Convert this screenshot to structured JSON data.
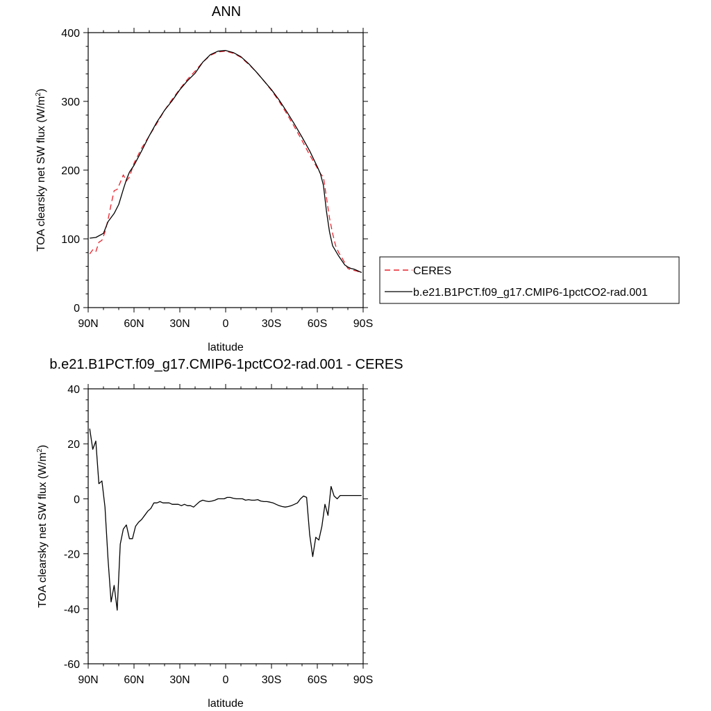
{
  "chart_data": [
    {
      "type": "line",
      "title": "ANN",
      "xlabel": "latitude",
      "ylabel": "TOA clearsky net SW flux (W/m",
      "ylabel_sup": "2",
      "ylabel_end": ")",
      "xlim": [
        90,
        -90
      ],
      "ylim": [
        0,
        400
      ],
      "x_ticks": [
        90,
        60,
        30,
        0,
        -30,
        -60,
        -90
      ],
      "x_tick_labels": [
        "90N",
        "60N",
        "30N",
        "0",
        "30S",
        "60S",
        "90S"
      ],
      "y_ticks": [
        0,
        100,
        200,
        300,
        400
      ],
      "y_tick_labels": [
        "0",
        "100",
        "200",
        "300",
        "400"
      ],
      "legend": {
        "placement": "right",
        "entries": [
          "CERES",
          "b.e21.B1PCT.f09_g17.CMIP6-1pctCO2-rad.001"
        ]
      },
      "series": [
        {
          "name": "CERES",
          "color": "#e8222c",
          "dash": true,
          "x": [
            89,
            87,
            85,
            83,
            81,
            79,
            77,
            75,
            73,
            71,
            69,
            67,
            65,
            63,
            60,
            55,
            50,
            45,
            40,
            35,
            30,
            25,
            20,
            15,
            10,
            5,
            0,
            -5,
            -10,
            -15,
            -20,
            -25,
            -30,
            -35,
            -40,
            -45,
            -50,
            -55,
            -60,
            -62,
            -64,
            -66,
            -68,
            -70,
            -72,
            -74,
            -76,
            -78,
            -80,
            -82,
            -84,
            -86,
            -88,
            -89
          ],
          "y": [
            78,
            84,
            81,
            95,
            98,
            110,
            128,
            150,
            170,
            172,
            182,
            193,
            184,
            190,
            210,
            232,
            250,
            268,
            287,
            303,
            318,
            332,
            344,
            357,
            367,
            372,
            373,
            370,
            364,
            354,
            343,
            330,
            316,
            300,
            282,
            263,
            243,
            222,
            203,
            195,
            190,
            160,
            130,
            108,
            90,
            80,
            73,
            65,
            57,
            55,
            54,
            53,
            51,
            50
          ]
        },
        {
          "name": "b.e21.B1PCT.f09_g17.CMIP6-1pctCO2-rad.001",
          "color": "#000000",
          "dash": false,
          "x": [
            89,
            85,
            80,
            77,
            73,
            70,
            67,
            65,
            63,
            60,
            55,
            50,
            45,
            40,
            35,
            30,
            25,
            20,
            15,
            10,
            5,
            0,
            -5,
            -10,
            -15,
            -20,
            -25,
            -30,
            -35,
            -40,
            -45,
            -50,
            -55,
            -60,
            -62,
            -64,
            -66,
            -68,
            -70,
            -74,
            -78,
            -80,
            -82,
            -84,
            -86,
            -88,
            -89
          ],
          "y": [
            101,
            102,
            108,
            125,
            137,
            150,
            172,
            186,
            197,
            207,
            228,
            250,
            270,
            287,
            301,
            317,
            330,
            341,
            357,
            368,
            373,
            374,
            371,
            365,
            355,
            343,
            330,
            317,
            302,
            285,
            267,
            248,
            228,
            205,
            195,
            178,
            140,
            110,
            90,
            75,
            62,
            59,
            57,
            56,
            54,
            52,
            51
          ]
        }
      ]
    },
    {
      "type": "line",
      "title": "b.e21.B1PCT.f09_g17.CMIP6-1pctCO2-rad.001 - CERES",
      "xlabel": "latitude",
      "ylabel": "TOA clearsky net SW flux (W/m",
      "ylabel_sup": "2",
      "ylabel_end": ")",
      "xlim": [
        90,
        -90
      ],
      "ylim": [
        -60,
        40
      ],
      "x_ticks": [
        90,
        60,
        30,
        0,
        -30,
        -60,
        -90
      ],
      "x_tick_labels": [
        "90N",
        "60N",
        "30N",
        "0",
        "30S",
        "60S",
        "90S"
      ],
      "y_ticks": [
        -60,
        -40,
        -20,
        0,
        20,
        40
      ],
      "y_tick_labels": [
        "-60",
        "-40",
        "-20",
        "0",
        "20",
        "40"
      ],
      "series": [
        {
          "color": "#000000",
          "x": [
            89,
            87,
            85,
            83,
            81,
            79,
            77,
            75,
            73,
            71,
            69,
            67,
            65,
            63,
            61,
            59,
            57,
            55,
            53,
            51,
            49,
            47,
            45,
            43,
            41,
            39,
            37,
            35,
            33,
            31,
            29,
            27,
            25,
            23,
            21,
            19,
            17,
            15,
            13,
            11,
            9,
            7,
            5,
            3,
            1,
            -1,
            -3,
            -5,
            -7,
            -9,
            -11,
            -13,
            -15,
            -17,
            -19,
            -21,
            -23,
            -25,
            -27,
            -29,
            -31,
            -33,
            -35,
            -37,
            -39,
            -41,
            -43,
            -45,
            -47,
            -49,
            -51,
            -53,
            -55,
            -57,
            -59,
            -61,
            -63,
            -65,
            -67,
            -69,
            -71,
            -73,
            -75,
            -77,
            -79,
            -81,
            -83,
            -85,
            -87,
            -89
          ],
          "y": [
            25.5,
            18,
            21,
            5.5,
            6.5,
            -3,
            -22,
            -37.5,
            -31.5,
            -40.5,
            -16.5,
            -11,
            -9.5,
            -14.5,
            -14.5,
            -10,
            -8.5,
            -7.5,
            -6,
            -4.5,
            -3.5,
            -1.5,
            -1.5,
            -1,
            -1.5,
            -1.5,
            -1.5,
            -2,
            -2,
            -2,
            -2.5,
            -2,
            -2.5,
            -2.5,
            -3,
            -2,
            -1,
            -0.5,
            -0.8,
            -1,
            -0.8,
            -0.5,
            0,
            0,
            0,
            0.5,
            0.5,
            0.2,
            0,
            0,
            0,
            -0.5,
            -0.3,
            -0.5,
            -0.5,
            -0.3,
            -0.8,
            -1,
            -1,
            -1.2,
            -1.5,
            -2,
            -2.5,
            -2.8,
            -3,
            -2.8,
            -2.5,
            -2,
            -1.5,
            0,
            1,
            0.5,
            -13,
            -21,
            -14,
            -15,
            -10,
            -2,
            -6,
            4.5,
            1,
            0,
            1.2,
            1.2,
            1.2,
            1.2,
            1.2,
            1.2,
            1.2,
            1.2
          ]
        }
      ]
    }
  ]
}
